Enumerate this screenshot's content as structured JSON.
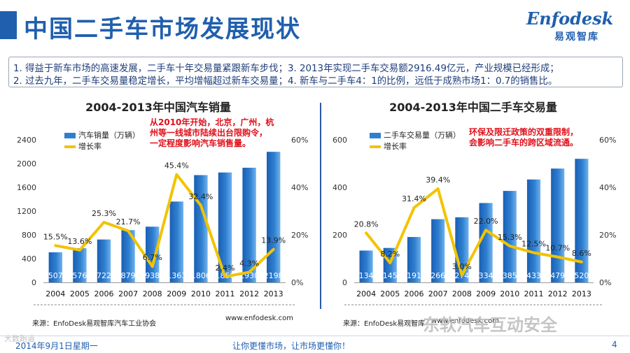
{
  "page": {
    "title": "中国二手车市场发展现状",
    "logo_en": "Enfodesk",
    "logo_cn": "易观智库",
    "points": [
      "1.  得益于新车市场的高速发展，二手车十年交易量紧跟新车步伐；3.  2013年实现二手车交易额2916.49亿元，产业规模已经形成；",
      "2.  过去九年，二手车交易量稳定增长，平均增幅超过新车交易量；4.  新车与二手车4：1的比例，远低于成熟市场1：0.7的销售比。"
    ],
    "footer_date": "2014年9月1日星期一",
    "footer_slogan": "让你更懂市场，让市场更懂你！",
    "page_number": "4",
    "watermark": "东软汽车互动安全",
    "watermark_small": "大数跑道"
  },
  "colors": {
    "brand": "#1f5fae",
    "bar": "#2f7fd0",
    "line": "#f2c300",
    "note": "#e0101a"
  },
  "chart_data": [
    {
      "type": "bar",
      "title": "2004-2013年中国汽车销量",
      "categories": [
        "2004",
        "2005",
        "2006",
        "2007",
        "2008",
        "2009",
        "2010",
        "2011",
        "2012",
        "2013"
      ],
      "series": [
        {
          "name": "汽车销量（万辆）",
          "type": "bar",
          "axis": "left",
          "values": [
            507,
            576,
            722,
            879,
            938,
            1361,
            1806,
            1850,
            1930,
            2198
          ]
        },
        {
          "name": "增长率",
          "type": "line",
          "axis": "right",
          "values": [
            15.5,
            13.6,
            25.3,
            21.7,
            6.7,
            45.4,
            32.4,
            2.4,
            4.3,
            13.9
          ]
        }
      ],
      "bar_labels": [
        "507",
        "576",
        "722",
        "879",
        "938",
        "1361",
        "1806",
        "1850",
        "1930",
        "2198"
      ],
      "rate_labels": [
        "15.5%",
        "13.6%",
        "25.3%",
        "21.7%",
        "6.7%",
        "45.4%",
        "32.4%",
        "2.4%",
        "4.3%",
        "13.9%"
      ],
      "ylim": [
        0,
        2400
      ],
      "yticks": [
        "0",
        "400",
        "800",
        "1200",
        "1600",
        "2000",
        "2400"
      ],
      "y2lim": [
        0,
        60
      ],
      "y2ticks": [
        "0%",
        "20%",
        "40%",
        "60%"
      ],
      "note": [
        "从2010年开始，北京，广州，杭",
        "州等一线城市陆续出台限购令，",
        "一定程度影响汽车销售量。"
      ],
      "source": "来源：EnfoDesk易观智库汽车工业协会",
      "site": "www.enfodesk.com"
    },
    {
      "type": "bar",
      "title": "2004-2013年中国二手车交易量",
      "categories": [
        "2004",
        "2005",
        "2006",
        "2007",
        "2008",
        "2009",
        "2010",
        "2011",
        "2012",
        "2013"
      ],
      "series": [
        {
          "name": "二手车交易量（万辆）",
          "type": "bar",
          "axis": "left",
          "values": [
            134,
            145,
            191,
            266,
            274,
            334,
            385,
            433,
            479,
            520
          ]
        },
        {
          "name": "增长率",
          "type": "line",
          "axis": "right",
          "values": [
            20.8,
            8.2,
            31.4,
            39.4,
            3.0,
            22.0,
            15.3,
            12.5,
            10.7,
            8.6
          ]
        }
      ],
      "bar_labels": [
        "134",
        "145",
        "191",
        "266",
        "274",
        "334",
        "385",
        "433",
        "479",
        "520"
      ],
      "rate_labels": [
        "20.8%",
        "8.2%",
        "31.4%",
        "39.4%",
        "3.0%",
        "22.0%",
        "15.3%",
        "12.5%",
        "10.7%",
        "8.6%"
      ],
      "ylim": [
        0,
        600
      ],
      "yticks": [
        "0",
        "200",
        "400",
        "600"
      ],
      "y2lim": [
        0,
        60
      ],
      "y2ticks": [
        "0%",
        "20%",
        "40%",
        "60%"
      ],
      "note": [
        "环保及限迁政策的双重限制，",
        "会影响二手车的跨区域流通。"
      ],
      "source": "来源：EnfoDesk易观智库",
      "site": "www.enfodesk.com"
    }
  ]
}
